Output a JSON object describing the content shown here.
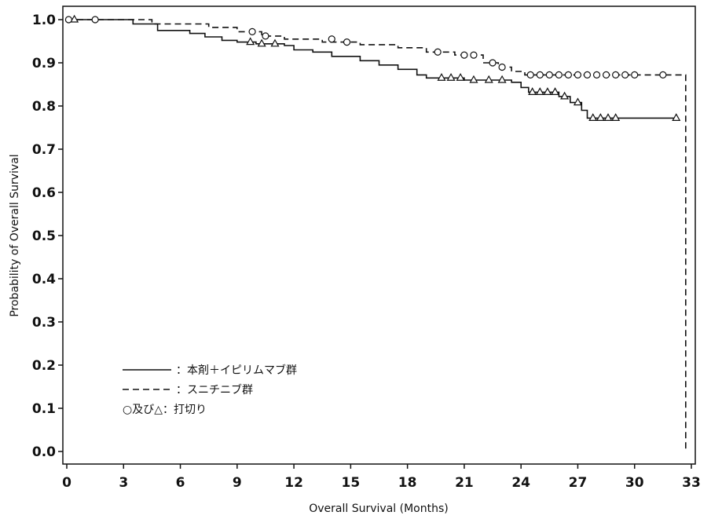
{
  "chart_data": {
    "type": "line",
    "title": "",
    "xlabel": "Overall Survival (Months)",
    "ylabel": "Probability of Overall Survival",
    "xlim": [
      0,
      33
    ],
    "ylim": [
      0.0,
      1.0
    ],
    "xticks": [
      0,
      3,
      6,
      9,
      12,
      15,
      18,
      21,
      24,
      27,
      30,
      33
    ],
    "yticks": [
      "0.0",
      "0.1",
      "0.2",
      "0.3",
      "0.4",
      "0.5",
      "0.6",
      "0.7",
      "0.8",
      "0.9",
      "1.0"
    ],
    "grid": false,
    "legend_position": "bottom-left",
    "series": [
      {
        "name": "：本剤＋イピリムマブ群",
        "line_style": "solid",
        "color": "#111111",
        "censor_marker": "triangle",
        "points": [
          [
            0,
            1.0
          ],
          [
            3.5,
            1.0
          ],
          [
            3.5,
            0.99
          ],
          [
            4.8,
            0.99
          ],
          [
            4.8,
            0.975
          ],
          [
            6.5,
            0.975
          ],
          [
            6.5,
            0.968
          ],
          [
            7.3,
            0.968
          ],
          [
            7.3,
            0.96
          ],
          [
            8.2,
            0.96
          ],
          [
            8.2,
            0.952
          ],
          [
            9.0,
            0.952
          ],
          [
            9.0,
            0.948
          ],
          [
            10.0,
            0.948
          ],
          [
            10.0,
            0.944
          ],
          [
            11.5,
            0.944
          ],
          [
            11.5,
            0.94
          ],
          [
            12.0,
            0.94
          ],
          [
            12.0,
            0.93
          ],
          [
            13.0,
            0.93
          ],
          [
            13.0,
            0.925
          ],
          [
            14.0,
            0.925
          ],
          [
            14.0,
            0.915
          ],
          [
            15.5,
            0.915
          ],
          [
            15.5,
            0.905
          ],
          [
            16.5,
            0.905
          ],
          [
            16.5,
            0.895
          ],
          [
            17.5,
            0.895
          ],
          [
            17.5,
            0.885
          ],
          [
            18.5,
            0.885
          ],
          [
            18.5,
            0.872
          ],
          [
            19.0,
            0.872
          ],
          [
            19.0,
            0.865
          ],
          [
            21.0,
            0.865
          ],
          [
            21.0,
            0.86
          ],
          [
            23.5,
            0.86
          ],
          [
            23.5,
            0.855
          ],
          [
            24.0,
            0.855
          ],
          [
            24.0,
            0.843
          ],
          [
            24.4,
            0.843
          ],
          [
            24.4,
            0.832
          ],
          [
            26.0,
            0.832
          ],
          [
            26.0,
            0.822
          ],
          [
            26.6,
            0.822
          ],
          [
            26.6,
            0.808
          ],
          [
            27.2,
            0.808
          ],
          [
            27.2,
            0.79
          ],
          [
            27.5,
            0.79
          ],
          [
            27.5,
            0.772
          ],
          [
            32.2,
            0.772
          ]
        ],
        "censored": [
          [
            0.4,
            1.0
          ],
          [
            9.7,
            0.948
          ],
          [
            10.3,
            0.944
          ],
          [
            11.0,
            0.944
          ],
          [
            19.8,
            0.865
          ],
          [
            20.3,
            0.865
          ],
          [
            20.8,
            0.865
          ],
          [
            21.5,
            0.86
          ],
          [
            22.3,
            0.86
          ],
          [
            23.0,
            0.86
          ],
          [
            24.6,
            0.832
          ],
          [
            25.0,
            0.832
          ],
          [
            25.4,
            0.832
          ],
          [
            25.8,
            0.832
          ],
          [
            26.3,
            0.822
          ],
          [
            27.0,
            0.808
          ],
          [
            27.8,
            0.772
          ],
          [
            28.2,
            0.772
          ],
          [
            28.6,
            0.772
          ],
          [
            29.0,
            0.772
          ],
          [
            32.2,
            0.772
          ]
        ]
      },
      {
        "name": "：スニチニブ群",
        "line_style": "dashed",
        "color": "#111111",
        "censor_marker": "circle",
        "points": [
          [
            0,
            1.0
          ],
          [
            4.5,
            1.0
          ],
          [
            4.5,
            0.99
          ],
          [
            7.5,
            0.99
          ],
          [
            7.5,
            0.982
          ],
          [
            9.0,
            0.982
          ],
          [
            9.0,
            0.972
          ],
          [
            10.3,
            0.972
          ],
          [
            10.3,
            0.962
          ],
          [
            11.5,
            0.962
          ],
          [
            11.5,
            0.955
          ],
          [
            13.5,
            0.955
          ],
          [
            13.5,
            0.948
          ],
          [
            15.5,
            0.948
          ],
          [
            15.5,
            0.942
          ],
          [
            17.5,
            0.942
          ],
          [
            17.5,
            0.935
          ],
          [
            19.0,
            0.935
          ],
          [
            19.0,
            0.925
          ],
          [
            20.5,
            0.925
          ],
          [
            20.5,
            0.918
          ],
          [
            22.0,
            0.918
          ],
          [
            22.0,
            0.9
          ],
          [
            22.8,
            0.9
          ],
          [
            22.8,
            0.89
          ],
          [
            23.5,
            0.89
          ],
          [
            23.5,
            0.88
          ],
          [
            24.2,
            0.88
          ],
          [
            24.2,
            0.872
          ],
          [
            32.7,
            0.872
          ],
          [
            32.7,
            0.0
          ]
        ],
        "censored": [
          [
            0.1,
            1.0
          ],
          [
            1.5,
            1.0
          ],
          [
            9.8,
            0.972
          ],
          [
            10.5,
            0.962
          ],
          [
            14.0,
            0.955
          ],
          [
            14.8,
            0.948
          ],
          [
            19.6,
            0.925
          ],
          [
            21.0,
            0.918
          ],
          [
            21.5,
            0.918
          ],
          [
            22.5,
            0.9
          ],
          [
            23.0,
            0.89
          ],
          [
            24.5,
            0.872
          ],
          [
            25.0,
            0.872
          ],
          [
            25.5,
            0.872
          ],
          [
            26.0,
            0.872
          ],
          [
            26.5,
            0.872
          ],
          [
            27.0,
            0.872
          ],
          [
            27.5,
            0.872
          ],
          [
            28.0,
            0.872
          ],
          [
            28.5,
            0.872
          ],
          [
            29.0,
            0.872
          ],
          [
            29.5,
            0.872
          ],
          [
            30.0,
            0.872
          ],
          [
            31.5,
            0.872
          ]
        ]
      }
    ],
    "legend_note": "○及び△：打切り"
  }
}
